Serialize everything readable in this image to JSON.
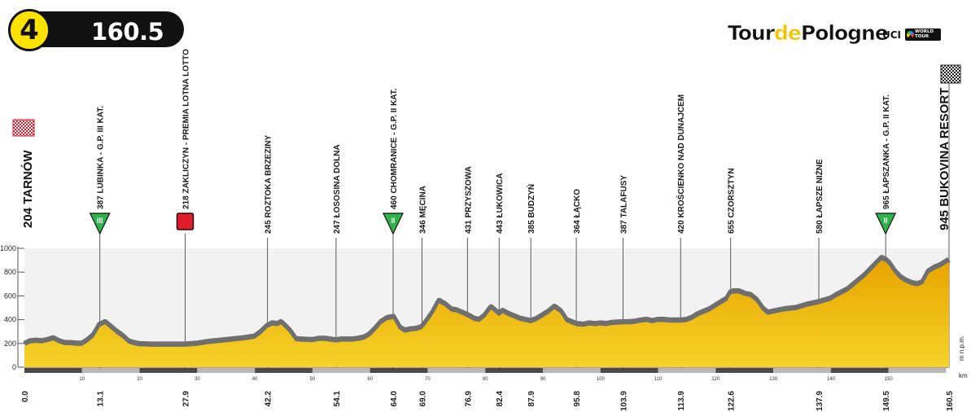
{
  "stage": {
    "number": "4",
    "distance": "160.5 km"
  },
  "logo": {
    "part1": "Tour",
    "part2": "de",
    "part3": "Pologne",
    "uci": "UCI",
    "world_tour": "WORLD TOUR"
  },
  "colors": {
    "fill_top": "#e8a400",
    "fill_bottom": "#f5d328",
    "outline": "#6f6f6f",
    "band": "#f2f2f2",
    "badge_yellow": "#ffe300"
  },
  "chart_data": {
    "type": "area",
    "xlabel": "km",
    "ylabel": "m n.p.m.",
    "xlim": [
      0,
      160.5
    ],
    "ylim": [
      0,
      1000
    ],
    "yticks": [
      0,
      200,
      400,
      600,
      800,
      1000
    ],
    "xticks": [
      10,
      20,
      30,
      40,
      50,
      60,
      70,
      80,
      90,
      100,
      110,
      120,
      130,
      140,
      150
    ],
    "bottom_km_labels": [
      "0.0",
      "13.1",
      "27.9",
      "42.2",
      "54.1",
      "64.0",
      "69.0",
      "76.9",
      "82.4",
      "87.9",
      "95.8",
      "103.9",
      "113.9",
      "122.6",
      "137.9",
      "149.5",
      "160.5"
    ],
    "profile": [
      [
        0,
        175
      ],
      [
        1,
        200
      ],
      [
        2,
        205
      ],
      [
        3,
        200
      ],
      [
        4,
        210
      ],
      [
        5,
        225
      ],
      [
        6,
        200
      ],
      [
        7,
        185
      ],
      [
        8,
        185
      ],
      [
        9,
        180
      ],
      [
        10,
        180
      ],
      [
        11,
        210
      ],
      [
        12,
        250
      ],
      [
        12.5,
        290
      ],
      [
        13.1,
        340
      ],
      [
        14,
        360
      ],
      [
        15,
        320
      ],
      [
        16,
        280
      ],
      [
        17,
        245
      ],
      [
        18,
        200
      ],
      [
        19,
        185
      ],
      [
        20,
        175
      ],
      [
        22,
        172
      ],
      [
        24,
        172
      ],
      [
        26,
        172
      ],
      [
        27.9,
        172
      ],
      [
        30,
        180
      ],
      [
        32,
        195
      ],
      [
        34,
        205
      ],
      [
        36,
        215
      ],
      [
        38,
        225
      ],
      [
        40,
        240
      ],
      [
        41,
        275
      ],
      [
        42.2,
        330
      ],
      [
        43,
        350
      ],
      [
        44,
        345
      ],
      [
        44.5,
        360
      ],
      [
        45,
        340
      ],
      [
        46,
        290
      ],
      [
        47,
        220
      ],
      [
        48,
        215
      ],
      [
        49,
        212
      ],
      [
        50,
        210
      ],
      [
        51,
        220
      ],
      [
        52,
        222
      ],
      [
        53,
        215
      ],
      [
        54.1,
        208
      ],
      [
        55,
        215
      ],
      [
        56,
        215
      ],
      [
        57,
        215
      ],
      [
        58,
        222
      ],
      [
        59,
        232
      ],
      [
        60,
        260
      ],
      [
        61,
        310
      ],
      [
        62,
        365
      ],
      [
        63,
        395
      ],
      [
        64,
        405
      ],
      [
        64.5,
        365
      ],
      [
        65,
        320
      ],
      [
        66,
        290
      ],
      [
        67,
        300
      ],
      [
        68,
        305
      ],
      [
        69,
        320
      ],
      [
        70,
        380
      ],
      [
        71,
        450
      ],
      [
        72,
        540
      ],
      [
        73,
        510
      ],
      [
        74,
        470
      ],
      [
        75,
        460
      ],
      [
        76,
        440
      ],
      [
        76.9,
        420
      ],
      [
        78,
        390
      ],
      [
        79,
        380
      ],
      [
        80,
        420
      ],
      [
        81,
        485
      ],
      [
        82.4,
        430
      ],
      [
        83,
        455
      ],
      [
        84,
        430
      ],
      [
        85,
        410
      ],
      [
        86,
        390
      ],
      [
        87.9,
        370
      ],
      [
        89,
        390
      ],
      [
        90,
        420
      ],
      [
        91,
        450
      ],
      [
        92,
        490
      ],
      [
        93,
        455
      ],
      [
        94,
        380
      ],
      [
        95.8,
        345
      ],
      [
        97,
        340
      ],
      [
        98,
        350
      ],
      [
        99,
        345
      ],
      [
        100,
        350
      ],
      [
        101,
        345
      ],
      [
        102,
        355
      ],
      [
        103.9,
        360
      ],
      [
        105,
        360
      ],
      [
        106,
        365
      ],
      [
        107,
        375
      ],
      [
        108,
        380
      ],
      [
        109,
        370
      ],
      [
        110,
        380
      ],
      [
        111,
        380
      ],
      [
        112,
        375
      ],
      [
        113.9,
        375
      ],
      [
        115,
        380
      ],
      [
        116,
        400
      ],
      [
        117,
        430
      ],
      [
        118,
        450
      ],
      [
        119,
        470
      ],
      [
        120,
        500
      ],
      [
        121,
        530
      ],
      [
        122,
        560
      ],
      [
        122.6,
        610
      ],
      [
        123,
        620
      ],
      [
        124,
        620
      ],
      [
        125,
        600
      ],
      [
        126,
        590
      ],
      [
        127,
        550
      ],
      [
        128,
        480
      ],
      [
        129,
        440
      ],
      [
        130,
        450
      ],
      [
        131,
        460
      ],
      [
        132,
        470
      ],
      [
        133,
        475
      ],
      [
        134,
        480
      ],
      [
        135,
        495
      ],
      [
        136,
        510
      ],
      [
        137,
        520
      ],
      [
        137.9,
        530
      ],
      [
        139,
        545
      ],
      [
        140,
        560
      ],
      [
        141,
        590
      ],
      [
        142,
        615
      ],
      [
        143,
        640
      ],
      [
        144,
        680
      ],
      [
        145,
        720
      ],
      [
        146,
        760
      ],
      [
        147,
        810
      ],
      [
        148,
        860
      ],
      [
        148.8,
        900
      ],
      [
        149.5,
        885
      ],
      [
        150,
        860
      ],
      [
        151,
        790
      ],
      [
        152,
        740
      ],
      [
        153,
        710
      ],
      [
        154,
        690
      ],
      [
        155,
        680
      ],
      [
        156,
        700
      ],
      [
        157,
        790
      ],
      [
        158,
        820
      ],
      [
        159,
        840
      ],
      [
        160.5,
        885
      ]
    ],
    "markers": [
      {
        "km": 13.1,
        "label": "387 LUBINKA - G.P. III KAT.",
        "badge": "III",
        "kind": "kom"
      },
      {
        "km": 27.9,
        "label": "218 ZAKLICZYN - PREMIA LOTNA LOTTO",
        "kind": "sprint"
      },
      {
        "km": 42.2,
        "label": "245 ROZTOKA BRZEZINY"
      },
      {
        "km": 54.1,
        "label": "247 ŁOSOSINA DOLNA"
      },
      {
        "km": 64.0,
        "label": "460 CHOMRANICE - G.P. II KAT.",
        "badge": "II",
        "kind": "kom"
      },
      {
        "km": 69.0,
        "label": "346 MĘCINA"
      },
      {
        "km": 76.9,
        "label": "431 PRZYSZOWA"
      },
      {
        "km": 82.4,
        "label": "443 ŁUKOWICA"
      },
      {
        "km": 87.9,
        "label": "385 BUDZYŃ"
      },
      {
        "km": 95.8,
        "label": "364 ŁĄCKO"
      },
      {
        "km": 103.9,
        "label": "387 TALAFUSY"
      },
      {
        "km": 113.9,
        "label": "420 KROŚCIENKO NAD DUNAJCEM"
      },
      {
        "km": 122.6,
        "label": "655 CZORSZTYN"
      },
      {
        "km": 137.9,
        "label": "580 ŁAPSZE NIŻNE"
      },
      {
        "km": 149.5,
        "label": "965 ŁAPSZANKA - G.P. II KAT.",
        "badge": "II",
        "kind": "kom"
      }
    ],
    "start": {
      "km": 0,
      "label": "204 TARNÓW"
    },
    "finish": {
      "km": 160.5,
      "label": "945 BUKOVINA RESORT"
    }
  }
}
